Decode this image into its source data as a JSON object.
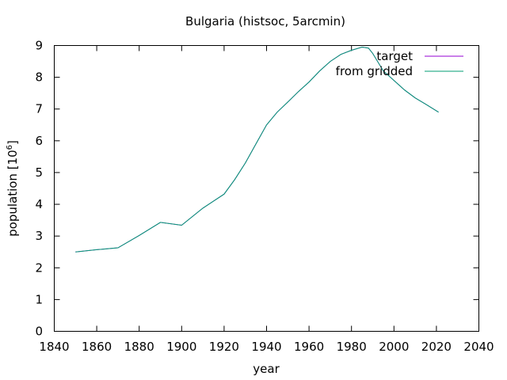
{
  "chart_data": {
    "type": "line",
    "title": "Bulgaria (histsoc, 5arcmin)",
    "xlabel": "year",
    "ylabel": "population [10",
    "ylabel_sup": "6",
    "ylabel_end": "]",
    "xlim": [
      1840,
      2040
    ],
    "ylim": [
      0,
      9
    ],
    "xticks": [
      "1840",
      "1860",
      "1880",
      "1900",
      "1920",
      "1940",
      "1960",
      "1980",
      "2000",
      "2020",
      "2040"
    ],
    "yticks": [
      "0",
      "1",
      "2",
      "3",
      "4",
      "5",
      "6",
      "7",
      "8",
      "9"
    ],
    "grid": false,
    "legend_position": "top-right",
    "series": [
      {
        "name": "target",
        "color": "#9400d3",
        "x": [
          1850,
          1860,
          1870,
          1880,
          1890,
          1900,
          1910,
          1920,
          1925,
          1930,
          1935,
          1940,
          1945,
          1950,
          1955,
          1960,
          1965,
          1970,
          1975,
          1980,
          1985,
          1988,
          1990,
          1995,
          2000,
          2005,
          2010,
          2015,
          2021
        ],
        "y": [
          2.5,
          2.57,
          2.63,
          3.02,
          3.43,
          3.34,
          3.88,
          4.32,
          4.78,
          5.3,
          5.9,
          6.5,
          6.9,
          7.22,
          7.55,
          7.85,
          8.2,
          8.5,
          8.72,
          8.85,
          8.95,
          8.92,
          8.75,
          8.2,
          7.9,
          7.6,
          7.35,
          7.15,
          6.9
        ]
      },
      {
        "name": "from gridded",
        "color": "#009e73",
        "x": [
          1850,
          1860,
          1870,
          1880,
          1890,
          1900,
          1910,
          1920,
          1925,
          1930,
          1935,
          1940,
          1945,
          1950,
          1955,
          1960,
          1965,
          1970,
          1975,
          1980,
          1985,
          1988,
          1990,
          1995,
          2000,
          2005,
          2010,
          2015,
          2021
        ],
        "y": [
          2.5,
          2.57,
          2.63,
          3.02,
          3.43,
          3.34,
          3.88,
          4.32,
          4.78,
          5.3,
          5.9,
          6.5,
          6.9,
          7.22,
          7.55,
          7.85,
          8.2,
          8.5,
          8.72,
          8.85,
          8.95,
          8.92,
          8.75,
          8.2,
          7.9,
          7.6,
          7.35,
          7.15,
          6.9
        ]
      }
    ]
  }
}
